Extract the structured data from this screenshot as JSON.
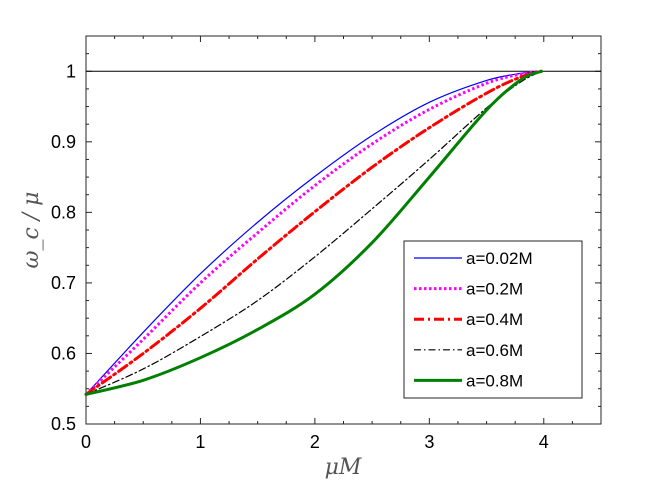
{
  "chart_data": {
    "type": "line",
    "xlabel": "μM",
    "ylabel": "ω_c / μ",
    "xlim": [
      0,
      4.5
    ],
    "ylim": [
      0.5,
      1.05
    ],
    "x_ticks": [
      "0",
      "1",
      "2",
      "3",
      "4"
    ],
    "y_ticks": [
      "0.5",
      "0.6",
      "0.7",
      "0.8",
      "0.9",
      "1"
    ],
    "grid": false,
    "legend_position": "right",
    "reference_line": {
      "y": 1.0,
      "color": "#000000"
    },
    "series": [
      {
        "name": "a=0.02M",
        "color": "#0000ff",
        "style": "solid",
        "width": 1.2,
        "x": [
          0,
          0.5,
          1.0,
          1.5,
          2.0,
          2.5,
          3.0,
          3.5,
          3.8,
          3.98
        ],
        "y": [
          0.542,
          0.63,
          0.713,
          0.786,
          0.851,
          0.909,
          0.956,
          0.987,
          0.997,
          1.0
        ]
      },
      {
        "name": "a=0.2M",
        "color": "#ff00ff",
        "style": "dotted",
        "width": 3,
        "x": [
          0,
          0.5,
          1.0,
          1.5,
          2.0,
          2.5,
          3.0,
          3.5,
          3.8,
          3.98
        ],
        "y": [
          0.542,
          0.62,
          0.7,
          0.771,
          0.838,
          0.897,
          0.946,
          0.983,
          0.996,
          1.0
        ]
      },
      {
        "name": "a=0.4M",
        "color": "#ff0000",
        "style": "dashdot",
        "width": 3,
        "x": [
          0,
          0.5,
          1.0,
          1.5,
          2.0,
          2.5,
          3.0,
          3.5,
          3.8,
          3.98
        ],
        "y": [
          0.542,
          0.6,
          0.664,
          0.734,
          0.801,
          0.864,
          0.92,
          0.969,
          0.992,
          1.0
        ]
      },
      {
        "name": "a=0.6M",
        "color": "#000000",
        "style": "dashdot",
        "width": 1.2,
        "x": [
          0,
          0.5,
          1.0,
          1.5,
          2.0,
          2.5,
          3.0,
          3.5,
          3.8,
          3.98
        ],
        "y": [
          0.542,
          0.578,
          0.624,
          0.675,
          0.737,
          0.805,
          0.875,
          0.948,
          0.985,
          1.0
        ]
      },
      {
        "name": "a=0.8M",
        "color": "#008000",
        "style": "solid",
        "width": 3,
        "x": [
          0,
          0.5,
          1.0,
          1.5,
          2.0,
          2.5,
          3.0,
          3.5,
          3.8,
          3.98
        ],
        "y": [
          0.542,
          0.562,
          0.594,
          0.634,
          0.684,
          0.757,
          0.85,
          0.945,
          0.988,
          1.0
        ]
      }
    ]
  }
}
